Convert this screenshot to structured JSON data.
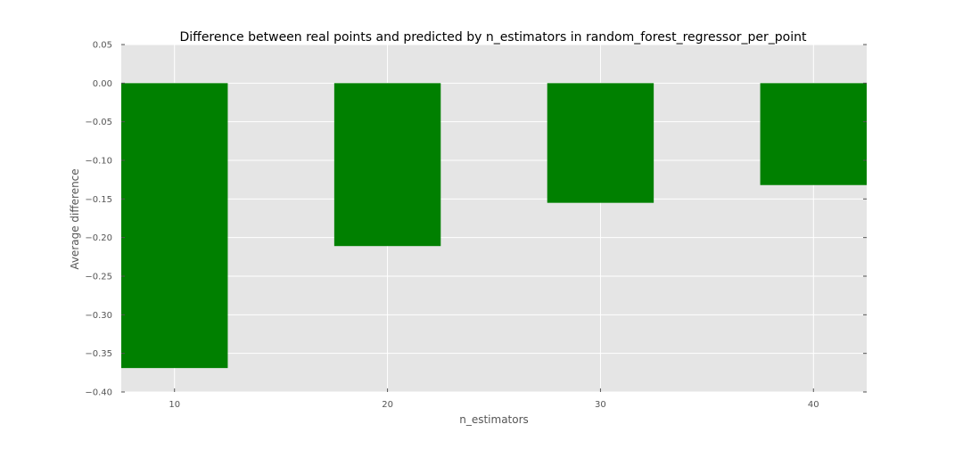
{
  "chart_data": {
    "type": "bar",
    "title": "Difference between real points and predicted by n_estimators in random_forest_regressor_per_point",
    "xlabel": "n_estimators",
    "ylabel": "Average difference",
    "categories": [
      10,
      20,
      30,
      40
    ],
    "values": [
      -0.369,
      -0.211,
      -0.155,
      -0.132
    ],
    "xlim": [
      7.5,
      42.5
    ],
    "ylim": [
      -0.4,
      0.05
    ],
    "yticks": [
      "0.05",
      "0.00",
      "−0.05",
      "−0.10",
      "−0.15",
      "−0.20",
      "−0.25",
      "−0.30",
      "−0.35",
      "−0.40"
    ],
    "ytick_values": [
      0.05,
      0.0,
      -0.05,
      -0.1,
      -0.15,
      -0.2,
      -0.25,
      -0.3,
      -0.35,
      -0.4
    ],
    "xticks": [
      "10",
      "20",
      "30",
      "40"
    ],
    "bar_color": "#008000",
    "plot_background": "#e5e5e5",
    "grid_color": "#ffffff",
    "grid": true
  }
}
